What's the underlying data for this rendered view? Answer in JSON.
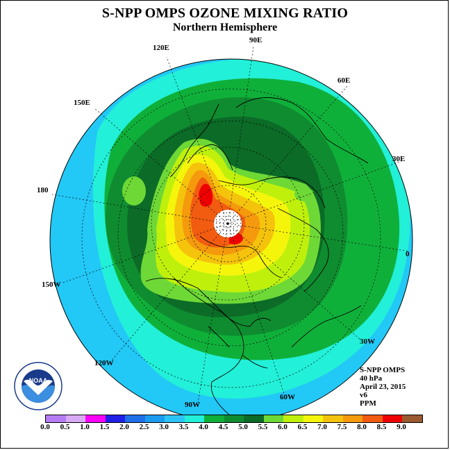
{
  "title": "S-NPP OMPS OZONE MIXING RATIO",
  "subtitle": "Northern Hemisphere",
  "longitude_labels": [
    "90E",
    "60E",
    "30E",
    "0",
    "30W",
    "60W",
    "90W",
    "120W",
    "150W",
    "180",
    "150E",
    "120E"
  ],
  "info": {
    "instrument": "S-NPP OMPS",
    "level": "40 hPa",
    "date": "April 23, 2015",
    "version": "v6",
    "units": "PPM"
  },
  "colorbar": {
    "ticks": [
      "0.0",
      "0.5",
      "1.0",
      "1.5",
      "2.0",
      "2.5",
      "3.0",
      "3.5",
      "4.0",
      "4.5",
      "5.0",
      "5.5",
      "6.0",
      "6.5",
      "7.0",
      "7.5",
      "8.0",
      "8.5",
      "9.0"
    ],
    "colors": [
      "#b57cf5",
      "#d9aaf5",
      "#ff00ff",
      "#1f1fe8",
      "#1f6fe8",
      "#1c9cf0",
      "#2cc4f6",
      "#22f0d8",
      "#0fb03a",
      "#0f8c30",
      "#0b6b27",
      "#6ed836",
      "#bff00c",
      "#f5f50c",
      "#f5c30c",
      "#f59a0c",
      "#f25c10",
      "#ee0000",
      "#9a5a30"
    ]
  },
  "logo": {
    "name": "NOAA",
    "icon": "noaa-logo-icon"
  },
  "map": {
    "projection": "north polar stereographic",
    "hemisphere": "Northern",
    "no_data_region": "north pole"
  }
}
